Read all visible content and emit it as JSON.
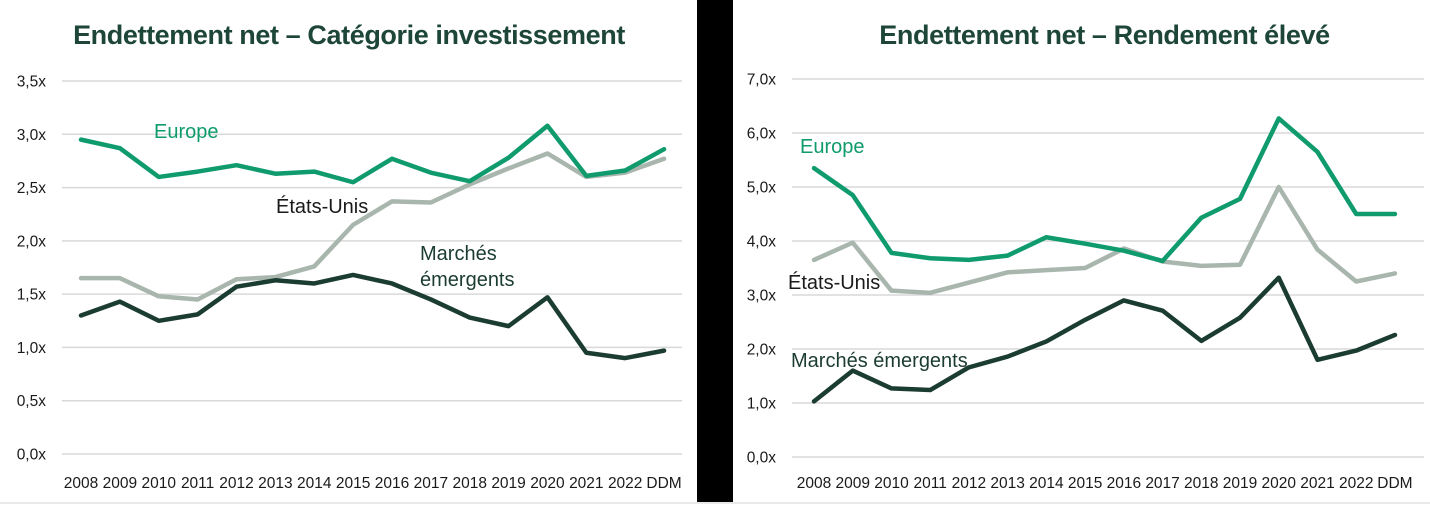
{
  "page": {
    "background": "#ffffff",
    "divider_color": "#000000",
    "grid_color": "#d9d9d9",
    "title_color": "#1d4639",
    "tick_color": "#1a1a1a"
  },
  "chart_data": [
    {
      "type": "line",
      "title": "Endettement net – Catégorie investissement",
      "categories": [
        "2008",
        "2009",
        "2010",
        "2011",
        "2012",
        "2013",
        "2014",
        "2015",
        "2016",
        "2017",
        "2018",
        "2019",
        "2020",
        "2021",
        "2022",
        "DDM"
      ],
      "series": [
        {
          "name": "Europe",
          "color": "#0f9b6d",
          "values": [
            2.95,
            2.87,
            2.6,
            2.65,
            2.71,
            2.63,
            2.65,
            2.55,
            2.77,
            2.64,
            2.56,
            2.78,
            3.08,
            2.61,
            2.66,
            2.86
          ]
        },
        {
          "name": "États-Unis",
          "color": "#a9b6ae",
          "values": [
            1.65,
            1.65,
            1.48,
            1.45,
            1.64,
            1.66,
            1.76,
            2.15,
            2.37,
            2.36,
            2.53,
            2.68,
            2.82,
            2.6,
            2.64,
            2.77
          ]
        },
        {
          "name": "Marchés émergents",
          "color": "#1b3c30",
          "values": [
            1.3,
            1.43,
            1.25,
            1.31,
            1.57,
            1.63,
            1.6,
            1.68,
            1.6,
            1.45,
            1.28,
            1.2,
            1.47,
            0.95,
            0.9,
            0.97
          ]
        }
      ],
      "ylim": [
        0,
        3.5
      ],
      "ytick_step": 0.5,
      "ytick_labels": [
        "0,0x",
        "0,5x",
        "1,0x",
        "1,5x",
        "2,0x",
        "2,5x",
        "3,0x",
        "3,5x"
      ],
      "ytick_suffix": "x",
      "decimal_separator": ",",
      "grid": "horizontal",
      "legend_position": "inline-annotations"
    },
    {
      "type": "line",
      "title": "Endettement net – Rendement élevé",
      "categories": [
        "2008",
        "2009",
        "2010",
        "2011",
        "2012",
        "2013",
        "2014",
        "2015",
        "2016",
        "2017",
        "2018",
        "2019",
        "2020",
        "2021",
        "2022",
        "DDM"
      ],
      "series": [
        {
          "name": "Europe",
          "color": "#0f9b6d",
          "values": [
            5.35,
            4.85,
            3.78,
            3.68,
            3.65,
            3.73,
            4.07,
            3.95,
            3.82,
            3.63,
            4.43,
            4.78,
            6.27,
            5.65,
            4.5,
            4.5
          ]
        },
        {
          "name": "États-Unis",
          "color": "#a9b6ae",
          "values": [
            3.65,
            3.97,
            3.08,
            3.04,
            3.23,
            3.42,
            3.46,
            3.5,
            3.86,
            3.62,
            3.54,
            3.56,
            5.0,
            3.84,
            3.25,
            3.4
          ]
        },
        {
          "name": "Marchés émergents",
          "color": "#1b3c30",
          "values": [
            1.03,
            1.6,
            1.27,
            1.24,
            1.66,
            1.86,
            2.14,
            2.54,
            2.9,
            2.71,
            2.15,
            2.58,
            3.32,
            1.8,
            1.97,
            2.26
          ]
        }
      ],
      "ylim": [
        0,
        7
      ],
      "ytick_step": 1,
      "ytick_labels": [
        "0,0x",
        "1,0x",
        "2,0x",
        "3,0x",
        "4,0x",
        "5,0x",
        "6,0x",
        "7,0x"
      ],
      "ytick_suffix": "x",
      "decimal_separator": ",",
      "grid": "horizontal",
      "legend_position": "inline-annotations"
    }
  ]
}
